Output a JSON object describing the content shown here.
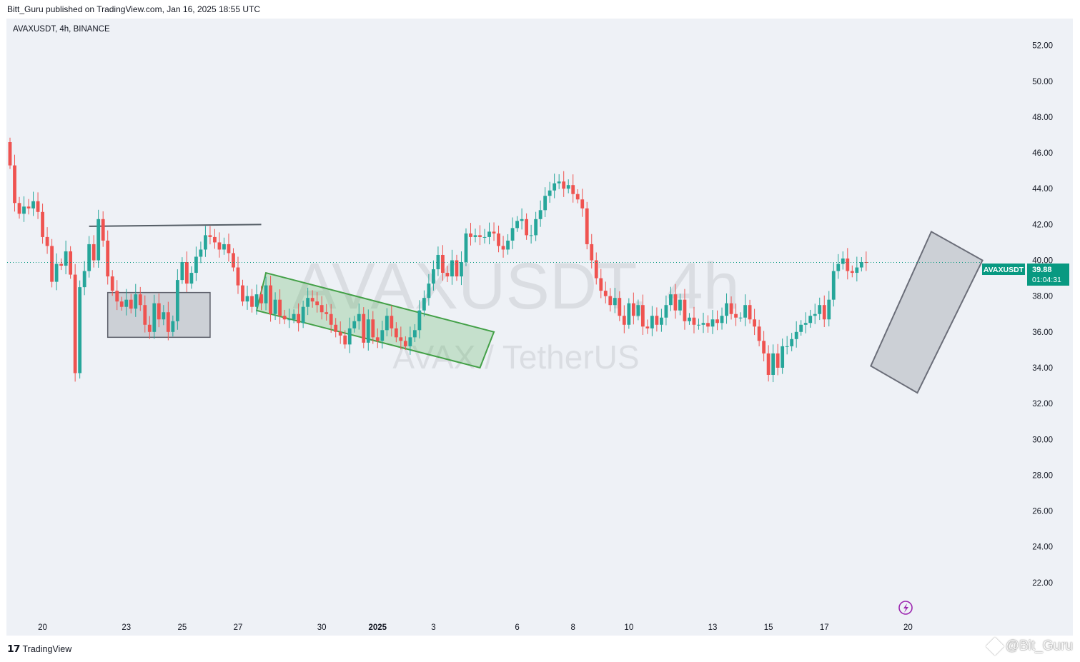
{
  "header": {
    "published": "Bitt_Guru published on TradingView.com, Jan 16, 2025 18:55 UTC"
  },
  "symbol_title": "AVAXUSDT, 4h, BINANCE",
  "watermark": {
    "line1": "AVAXUSDT, 4h",
    "line2": "AVAX / TetherUS"
  },
  "price_label": {
    "symbol": "AVAXUSDT",
    "price": "39.88",
    "countdown": "01:04:31"
  },
  "footer": {
    "logo_text": "TradingView",
    "user_watermark": "@Bit_Guru"
  },
  "colors": {
    "up": "#26a69a",
    "down": "#ef5350",
    "background": "#eef1f6",
    "price_tag": "#089981"
  },
  "chart_data": {
    "type": "candlestick",
    "timeframe": "4h",
    "y_axis": {
      "min": 20,
      "max": 53.5,
      "ticks": [
        22,
        24,
        26,
        28,
        30,
        32,
        34,
        36,
        38,
        40,
        42,
        44,
        46,
        48,
        50,
        52
      ],
      "tick_labels": [
        "22.00",
        "24.00",
        "26.00",
        "28.00",
        "30.00",
        "32.00",
        "34.00",
        "36.00",
        "38.00",
        "40.00",
        "42.00",
        "44.00",
        "46.00",
        "48.00",
        "50.00",
        "52.00"
      ]
    },
    "x_axis": {
      "start": "2024-12-18T20:00",
      "labels": [
        {
          "text": "20",
          "date": "2024-12-20"
        },
        {
          "text": "23",
          "date": "2024-12-23"
        },
        {
          "text": "25",
          "date": "2024-12-25"
        },
        {
          "text": "27",
          "date": "2024-12-27"
        },
        {
          "text": "30",
          "date": "2024-12-30"
        },
        {
          "text": "2025",
          "date": "2025-01-01",
          "bold": true
        },
        {
          "text": "3",
          "date": "2025-01-03"
        },
        {
          "text": "6",
          "date": "2025-01-06"
        },
        {
          "text": "8",
          "date": "2025-01-08"
        },
        {
          "text": "10",
          "date": "2025-01-10"
        },
        {
          "text": "13",
          "date": "2025-01-13"
        },
        {
          "text": "15",
          "date": "2025-01-15"
        },
        {
          "text": "17",
          "date": "2025-01-17"
        },
        {
          "text": "20",
          "date": "2025-01-20"
        }
      ]
    },
    "last_price": 39.88,
    "closes": [
      45.3,
      43.2,
      42.6,
      43.0,
      42.9,
      43.3,
      42.7,
      41.3,
      40.8,
      38.8,
      39.8,
      39.7,
      40.5,
      39.2,
      33.7,
      38.5,
      39.4,
      40.9,
      40.0,
      42.3,
      41.1,
      39.1,
      38.3,
      37.7,
      37.4,
      37.8,
      37.3,
      38.1,
      37.5,
      36.4,
      36.0,
      37.6,
      36.7,
      37.1,
      36.0,
      36.6,
      38.9,
      39.9,
      38.7,
      39.3,
      40.2,
      40.6,
      41.4,
      41.3,
      41.0,
      40.6,
      40.9,
      40.4,
      39.6,
      38.6,
      37.7,
      38.0,
      37.4,
      38.1,
      37.6,
      38.6,
      37.0,
      37.8,
      36.9,
      36.7,
      36.7,
      37.0,
      36.5,
      37.4,
      37.9,
      37.7,
      37.5,
      37.1,
      37.0,
      36.4,
      36.0,
      35.8,
      35.3,
      36.2,
      36.6,
      37.0,
      35.4,
      36.7,
      35.7,
      35.5,
      36.1,
      36.9,
      36.2,
      35.7,
      35.5,
      35.2,
      35.7,
      36.1,
      37.2,
      37.9,
      38.7,
      39.5,
      40.3,
      39.3,
      39.1,
      40.0,
      39.1,
      39.9,
      41.5,
      41.3,
      41.4,
      41.3,
      41.3,
      41.6,
      41.5,
      40.8,
      40.6,
      41.1,
      41.8,
      42.2,
      42.3,
      41.4,
      41.4,
      42.3,
      42.8,
      43.6,
      43.9,
      44.3,
      44.4,
      44.0,
      44.2,
      43.7,
      43.4,
      42.9,
      40.9,
      40.0,
      39.0,
      38.3,
      38.0,
      37.5,
      37.9,
      36.9,
      36.4,
      37.6,
      36.9,
      37.5,
      36.3,
      36.2,
      36.9,
      36.4,
      36.8,
      37.5,
      38.1,
      37.2,
      37.8,
      36.6,
      36.8,
      36.4,
      36.4,
      36.5,
      36.3,
      36.7,
      36.5,
      36.9,
      37.6,
      37.0,
      36.8,
      36.8,
      37.5,
      36.7,
      36.3,
      35.5,
      34.8,
      33.6,
      34.8,
      34.0,
      35.2,
      35.2,
      35.6,
      36.0,
      36.4,
      36.5,
      36.9,
      37.0,
      37.5,
      36.7,
      37.8,
      39.4,
      39.8,
      40.1,
      39.4,
      39.3,
      39.6,
      39.9,
      39.88
    ],
    "annotations": [
      {
        "type": "horizontal-line",
        "from": {
          "i": 17,
          "price": 41.9
        },
        "to": {
          "i": 54,
          "price": 42.0
        },
        "color": "#555e66"
      },
      {
        "type": "rectangle",
        "from": {
          "i": 21,
          "price": 38.2
        },
        "to": {
          "i": 43,
          "price": 35.7
        },
        "color": "#787b86"
      },
      {
        "type": "channel",
        "points": [
          {
            "i": 55,
            "price": 39.3
          },
          {
            "i": 104,
            "price": 36.0
          },
          {
            "i": 101,
            "price": 34.0
          },
          {
            "i": 53,
            "price": 37.2
          }
        ],
        "color": "#4caf50"
      },
      {
        "type": "channel",
        "points": [
          {
            "i": 185,
            "price": 34.1
          },
          {
            "i": 198,
            "price": 41.6
          },
          {
            "i": 209,
            "price": 40.0
          },
          {
            "i": 195,
            "price": 32.6
          }
        ],
        "color": "#787b86"
      }
    ]
  }
}
